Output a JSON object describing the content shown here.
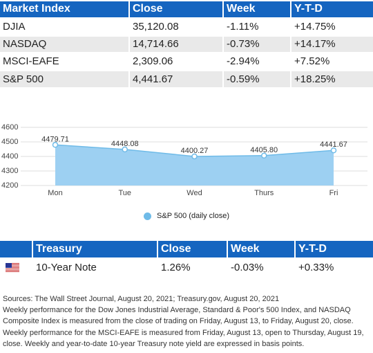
{
  "market_table": {
    "headers": [
      "Market Index",
      "Close",
      "Week",
      "Y-T-D"
    ],
    "rows": [
      [
        "DJIA",
        "35,120.08",
        "-1.11%",
        "+14.75%"
      ],
      [
        "NASDAQ",
        "14,714.66",
        "-0.73%",
        "+14.17%"
      ],
      [
        "MSCI-EAFE",
        "2,309.06",
        "-2.94%",
        "+7.52%"
      ],
      [
        "S&P 500",
        "4,441.67",
        "-0.59%",
        "+18.25%"
      ]
    ]
  },
  "chart_data": {
    "type": "area",
    "categories": [
      "Mon",
      "Tue",
      "Wed",
      "Thurs",
      "Fri"
    ],
    "series": [
      {
        "name": "S&P 500 (daily close)",
        "values": [
          4479.71,
          4448.08,
          4400.27,
          4405.8,
          4441.67
        ]
      }
    ],
    "data_labels": [
      "4479.71",
      "4448.08",
      "4400.27",
      "4405.80",
      "4441.67"
    ],
    "ylim": [
      4200,
      4600
    ],
    "yticks": [
      4200,
      4300,
      4400,
      4500,
      4600
    ],
    "grid": true,
    "legend": "bottom",
    "colors": {
      "fill": "#9dd0f2",
      "stroke": "#6fbbe8",
      "marker": "#6fbbe8"
    }
  },
  "legend_label": "S&P 500 (daily close)",
  "treasury_table": {
    "headers": [
      "",
      "Treasury",
      "Close",
      "Week",
      "Y-T-D"
    ],
    "row": {
      "name": "10-Year Note",
      "close": "1.26%",
      "week": "-0.03%",
      "ytd": "+0.33%"
    },
    "flag_icon": "us-flag-icon"
  },
  "notes": [
    "Sources: The Wall Street Journal, August 20, 2021; Treasury.gov, August 20, 2021",
    "Weekly performance for the Dow Jones Industrial Average, Standard & Poor's 500 Index, and NASDAQ Composite Index is measured from the close of trading on Friday, August 13, to Friday, August 20, close. Weekly performance for the MSCI-EAFE is measured from Friday, August 13, open to Thursday, August 19, close. Weekly and year-to-date 10-year Treasury note yield are expressed in basis points."
  ],
  "colors": {
    "header_bg": "#1565c0",
    "header_text": "#ffffff",
    "row_alt": "#e9e9e9"
  }
}
